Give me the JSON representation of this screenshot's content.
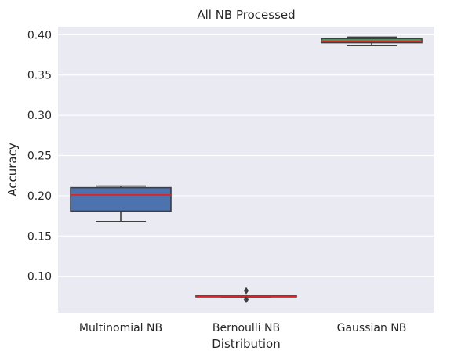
{
  "chart_data": {
    "type": "box",
    "title": "All NB Processed",
    "xlabel": "Distribution",
    "ylabel": "Accuracy",
    "ylim": [
      0.055,
      0.41
    ],
    "yticks": [
      "0.10",
      "0.15",
      "0.20",
      "0.25",
      "0.30",
      "0.35",
      "0.40"
    ],
    "grid": true,
    "categories": [
      "Multinomial NB",
      "Bernoulli NB",
      "Gaussian NB"
    ],
    "boxes": [
      {
        "category": "Multinomial NB",
        "min": 0.168,
        "q1": 0.181,
        "median": 0.201,
        "q3": 0.21,
        "max": 0.212,
        "outliers": [],
        "color": "#4c72b0"
      },
      {
        "category": "Bernoulli NB",
        "min": 0.0745,
        "q1": 0.0745,
        "median": 0.0752,
        "q3": 0.0765,
        "max": 0.0765,
        "outliers": [
          0.071,
          0.082
        ],
        "color": "#c44e52"
      },
      {
        "category": "Gaussian NB",
        "min": 0.3865,
        "q1": 0.39,
        "median": 0.392,
        "q3": 0.395,
        "max": 0.397,
        "outliers": [],
        "color": "#55a868"
      }
    ],
    "median_color": "#d62728",
    "background_color": "#eaeaf2"
  }
}
